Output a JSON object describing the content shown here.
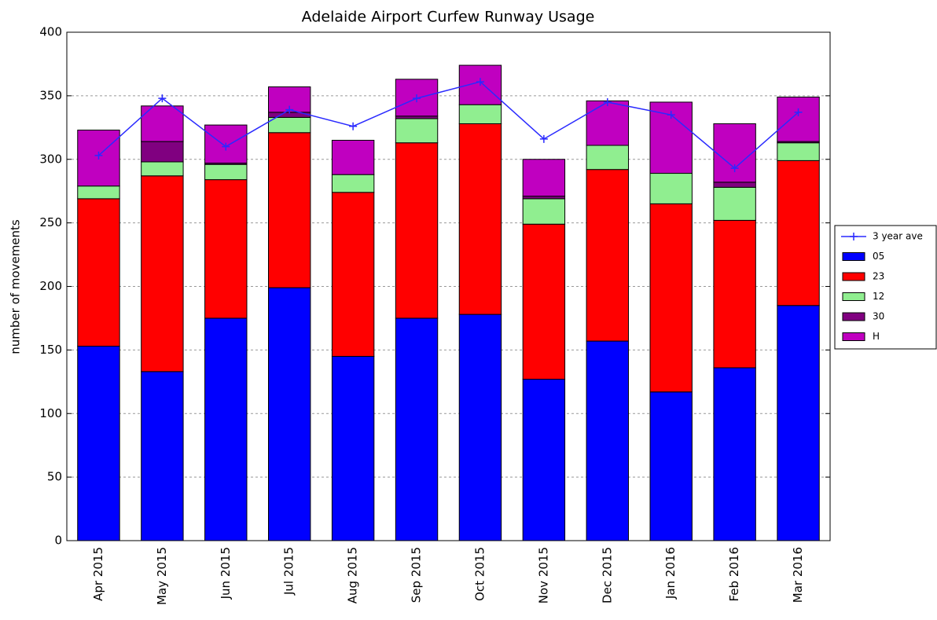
{
  "chart_data": {
    "type": "bar",
    "stacked": true,
    "title": "Adelaide Airport Curfew Runway Usage",
    "y_label": "number of movements",
    "categories": [
      "Apr 2015",
      "May 2015",
      "Jun 2015",
      "Jul 2015",
      "Aug 2015",
      "Sep 2015",
      "Oct 2015",
      "Nov 2015",
      "Dec 2015",
      "Jan 2016",
      "Feb 2016",
      "Mar 2016"
    ],
    "series": [
      {
        "name": "3 year ave",
        "type": "line",
        "color": "#2a2aff",
        "values": [
          303,
          348,
          310,
          339,
          326,
          348,
          361,
          316,
          345,
          335,
          293,
          337
        ]
      },
      {
        "name": "05",
        "color": "#0000ff",
        "values": [
          153,
          133,
          175,
          199,
          145,
          175,
          178,
          127,
          157,
          117,
          136,
          185
        ]
      },
      {
        "name": "23",
        "color": "#ff0000",
        "values": [
          116,
          154,
          109,
          122,
          129,
          138,
          150,
          122,
          135,
          148,
          116,
          114
        ]
      },
      {
        "name": "12",
        "color": "#90ee90",
        "values": [
          10,
          11,
          12,
          12,
          14,
          19,
          15,
          20,
          19,
          24,
          26,
          14
        ]
      },
      {
        "name": "30",
        "color": "#800080",
        "values": [
          0,
          16,
          1,
          4,
          0,
          2,
          0,
          2,
          0,
          0,
          4,
          1
        ]
      },
      {
        "name": "H",
        "color": "#c000c0",
        "values": [
          44,
          28,
          30,
          20,
          27,
          29,
          31,
          29,
          35,
          56,
          46,
          35
        ]
      }
    ],
    "ylim": [
      0,
      400
    ],
    "yticks": [
      0,
      50,
      100,
      150,
      200,
      250,
      300,
      350,
      400
    ],
    "grid": true,
    "legend": "outside right"
  }
}
